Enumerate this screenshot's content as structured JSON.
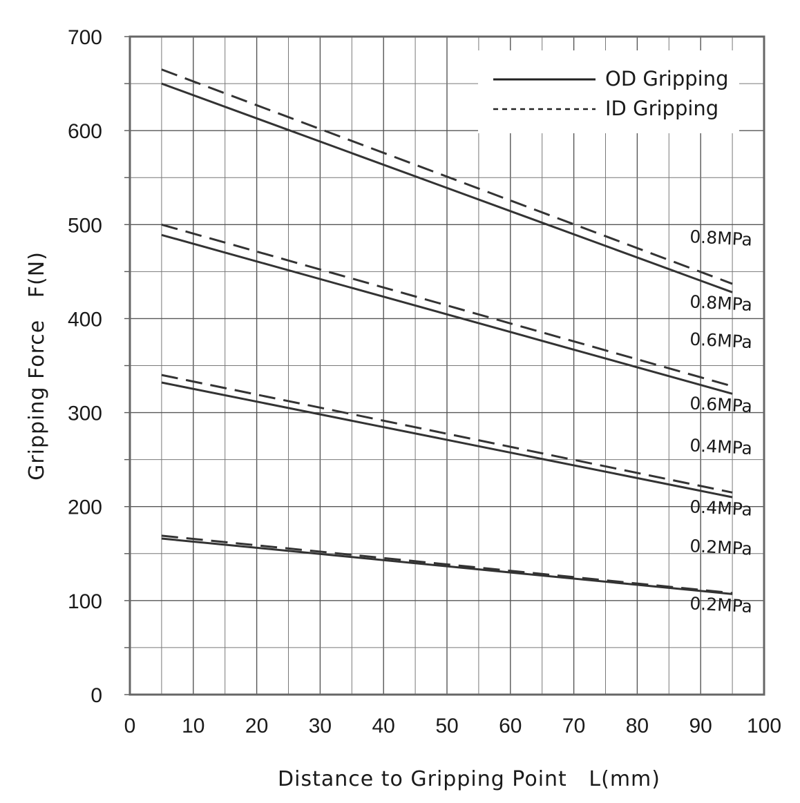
{
  "chart_data": {
    "type": "line",
    "xlabel": "Distance to Gripping Point   L(mm)",
    "ylabel": "Gripping Force   F(N)",
    "xlim": [
      0,
      100
    ],
    "ylim": [
      0,
      700
    ],
    "x_ticks": [
      "0",
      "10",
      "20",
      "30",
      "40",
      "50",
      "60",
      "70",
      "80",
      "90",
      "100"
    ],
    "y_ticks": [
      "0",
      "100",
      "200",
      "300",
      "400",
      "500",
      "600",
      "700"
    ],
    "grid": true,
    "legend_position": "top-right",
    "legend": [
      {
        "label": "OD Gripping",
        "style": "solid"
      },
      {
        "label": "ID Gripping",
        "style": "dashed"
      }
    ],
    "series": [
      {
        "mode": "ID Gripping",
        "style": "dashed",
        "label": "0.8MPa",
        "x": [
          5,
          95
        ],
        "y": [
          665,
          437
        ]
      },
      {
        "mode": "OD Gripping",
        "style": "solid",
        "label": "0.8MPa",
        "x": [
          5,
          95
        ],
        "y": [
          650,
          428
        ]
      },
      {
        "mode": "ID Gripping",
        "style": "dashed",
        "label": "0.6MPa",
        "x": [
          5,
          95
        ],
        "y": [
          500,
          328
        ]
      },
      {
        "mode": "OD Gripping",
        "style": "solid",
        "label": "0.6MPa",
        "x": [
          5,
          95
        ],
        "y": [
          489,
          320
        ]
      },
      {
        "mode": "ID Gripping",
        "style": "dashed",
        "label": "0.4MPa",
        "x": [
          5,
          95
        ],
        "y": [
          340,
          215
        ]
      },
      {
        "mode": "OD Gripping",
        "style": "solid",
        "label": "0.4MPa",
        "x": [
          5,
          95
        ],
        "y": [
          332,
          210
        ]
      },
      {
        "mode": "ID Gripping",
        "style": "dashed",
        "label": "0.2MPa",
        "x": [
          5,
          95
        ],
        "y": [
          169,
          108
        ]
      },
      {
        "mode": "OD Gripping",
        "style": "solid",
        "label": "0.2MPa",
        "x": [
          5,
          95
        ],
        "y": [
          166,
          107
        ]
      }
    ],
    "colors": {
      "line": "#333333",
      "grid": "#333333",
      "frame": "#666666",
      "text": "#1a1a1a"
    }
  }
}
